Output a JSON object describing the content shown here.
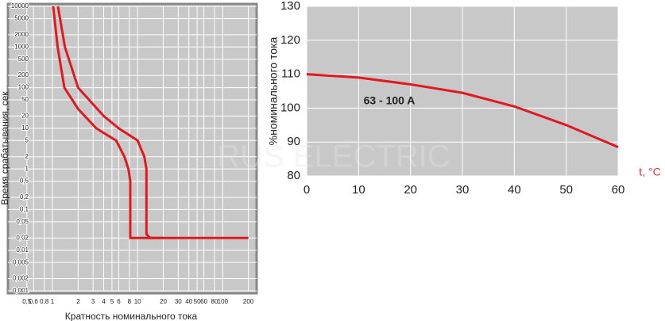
{
  "chart_data": [
    {
      "type": "line",
      "xlog": true,
      "ylog": true,
      "grid": true,
      "xlabel": "Кратность номинального тока",
      "ylabel": "Время срабатывания, сек",
      "xlim": [
        0.3,
        250
      ],
      "ylim": [
        0.001,
        10000
      ],
      "xticks": [
        {
          "value": 0.5,
          "label": "0,5"
        },
        {
          "value": 0.6,
          "label": "0,6"
        },
        {
          "value": 0.8,
          "label": "0,8"
        },
        1,
        2,
        3,
        4,
        5,
        6,
        8,
        10,
        20,
        30,
        40,
        50,
        60,
        80,
        100,
        200
      ],
      "yticks": [
        10000,
        5000,
        2000,
        1000,
        500,
        200,
        100,
        50,
        20,
        10,
        5,
        2,
        1,
        {
          "value": 0.5,
          "label": "0,5"
        },
        {
          "value": 0.2,
          "label": "0,2"
        },
        {
          "value": 0.1,
          "label": "0,1"
        },
        {
          "value": 0.05,
          "label": "0,05"
        },
        {
          "value": 0.02,
          "label": "0,02"
        },
        {
          "value": 0.01,
          "label": "0,01"
        },
        {
          "value": 0.005,
          "label": "0,005"
        },
        {
          "value": 0.002,
          "label": "0,002"
        },
        {
          "value": 0.001,
          "label": "0,001"
        }
      ],
      "series": [
        {
          "color": "#e0191f",
          "x": [
            1.02,
            1.15,
            1.38,
            2,
            3.27,
            5.6,
            7,
            7.8,
            8.2,
            8.2,
            10,
            200
          ],
          "values": [
            10000,
            1000,
            100,
            30,
            10,
            5,
            2,
            1,
            0.5,
            0.02,
            0.02,
            0.02
          ]
        },
        {
          "color": "#e0191f",
          "x": [
            1.16,
            1.4,
            2,
            4,
            6,
            10,
            12,
            12.7,
            12.7,
            14,
            20
          ],
          "values": [
            10000,
            1000,
            100,
            20,
            10,
            5,
            2,
            1,
            0.025,
            0.02,
            0.02
          ]
        }
      ]
    },
    {
      "type": "line",
      "grid": true,
      "xlabel": "t, °C",
      "ylabel": "%номинального тока",
      "annotation": "63 - 100 A",
      "watermark": "RUS ELECTRIC",
      "xlim": [
        0,
        60
      ],
      "ylim": [
        80,
        130
      ],
      "xticks": [
        0,
        10,
        20,
        30,
        40,
        50,
        60
      ],
      "yticks": [
        80,
        90,
        100,
        110,
        120,
        130
      ],
      "series": [
        {
          "color": "#e0191f",
          "x": [
            0,
            10,
            20,
            30,
            40,
            50,
            60
          ],
          "values": [
            110,
            109,
            107,
            104.5,
            100.5,
            95,
            88.5
          ]
        }
      ]
    }
  ]
}
